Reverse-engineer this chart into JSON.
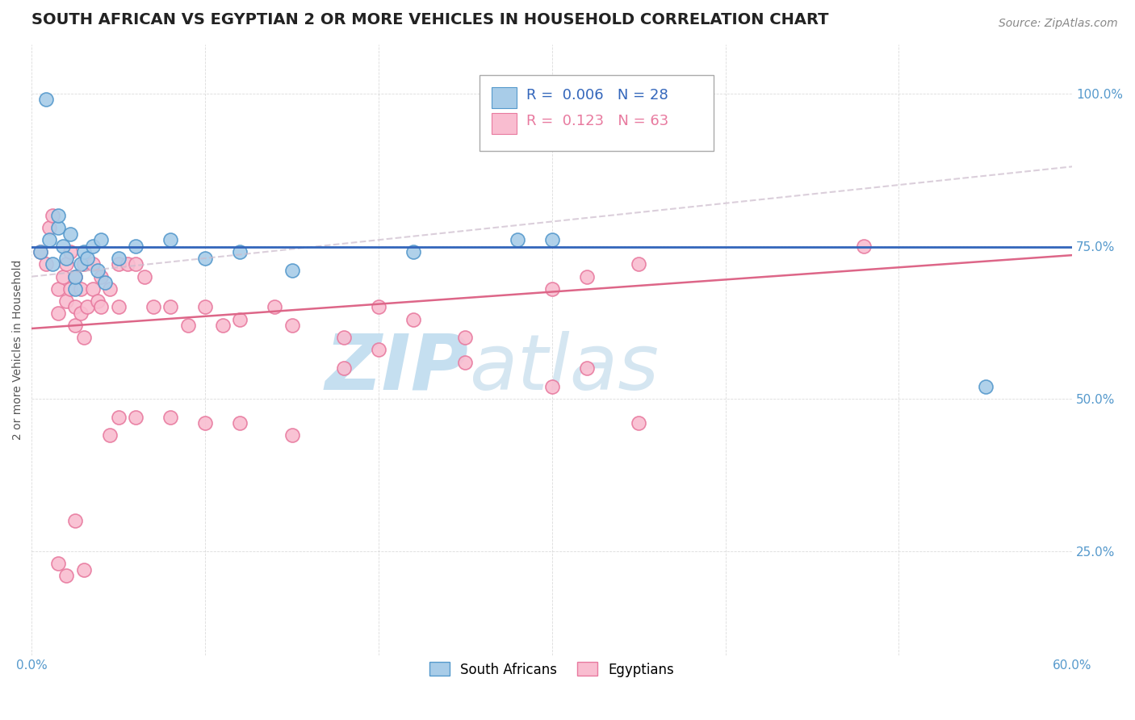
{
  "title": "SOUTH AFRICAN VS EGYPTIAN 2 OR MORE VEHICLES IN HOUSEHOLD CORRELATION CHART",
  "source_text": "Source: ZipAtlas.com",
  "ylabel": "2 or more Vehicles in Household",
  "xlim": [
    0.0,
    0.6
  ],
  "ylim": [
    0.08,
    1.08
  ],
  "x_ticks": [
    0.0,
    0.1,
    0.2,
    0.3,
    0.4,
    0.5,
    0.6
  ],
  "x_tick_labels": [
    "0.0%",
    "",
    "",
    "",
    "",
    "",
    "60.0%"
  ],
  "y_ticks": [
    0.25,
    0.5,
    0.75,
    1.0
  ],
  "y_tick_labels": [
    "25.0%",
    "50.0%",
    "75.0%",
    "100.0%"
  ],
  "blue_scatter_color": "#a8cce8",
  "blue_scatter_edge": "#5599cc",
  "pink_scatter_color": "#f9bdd0",
  "pink_scatter_edge": "#e87a9f",
  "blue_line_color": "#3366bb",
  "pink_line_color": "#dd6688",
  "pink_dash_color": "#ddaacc",
  "watermark_zip_color": "#c5dff0",
  "watermark_atlas_color": "#88b8d8",
  "legend_R_blue": "0.006",
  "legend_N_blue": "28",
  "legend_R_pink": "0.123",
  "legend_N_pink": "63",
  "legend_label_blue": "South Africans",
  "legend_label_pink": "Egyptians",
  "blue_scatter_x": [
    0.005,
    0.01,
    0.012,
    0.015,
    0.018,
    0.02,
    0.022,
    0.025,
    0.025,
    0.028,
    0.03,
    0.032,
    0.035,
    0.038,
    0.04,
    0.042,
    0.05,
    0.06,
    0.08,
    0.1,
    0.12,
    0.15,
    0.22,
    0.28,
    0.3,
    0.55,
    0.015,
    0.008
  ],
  "blue_scatter_y": [
    0.74,
    0.76,
    0.72,
    0.78,
    0.75,
    0.73,
    0.77,
    0.68,
    0.7,
    0.72,
    0.74,
    0.73,
    0.75,
    0.71,
    0.76,
    0.69,
    0.73,
    0.75,
    0.76,
    0.73,
    0.74,
    0.71,
    0.74,
    0.76,
    0.76,
    0.52,
    0.8,
    0.99
  ],
  "pink_scatter_x": [
    0.005,
    0.008,
    0.01,
    0.012,
    0.015,
    0.015,
    0.018,
    0.02,
    0.02,
    0.022,
    0.022,
    0.025,
    0.025,
    0.025,
    0.028,
    0.028,
    0.03,
    0.03,
    0.032,
    0.035,
    0.035,
    0.038,
    0.04,
    0.04,
    0.045,
    0.05,
    0.05,
    0.055,
    0.06,
    0.065,
    0.07,
    0.08,
    0.09,
    0.1,
    0.11,
    0.12,
    0.14,
    0.15,
    0.18,
    0.2,
    0.22,
    0.25,
    0.3,
    0.32,
    0.35,
    0.48,
    0.32,
    0.18,
    0.2,
    0.25,
    0.3,
    0.35,
    0.15,
    0.08,
    0.1,
    0.12,
    0.05,
    0.06,
    0.045,
    0.025,
    0.015,
    0.02,
    0.03
  ],
  "pink_scatter_y": [
    0.74,
    0.72,
    0.78,
    0.8,
    0.68,
    0.64,
    0.7,
    0.66,
    0.72,
    0.68,
    0.74,
    0.7,
    0.65,
    0.62,
    0.68,
    0.64,
    0.72,
    0.6,
    0.65,
    0.68,
    0.72,
    0.66,
    0.7,
    0.65,
    0.68,
    0.72,
    0.65,
    0.72,
    0.72,
    0.7,
    0.65,
    0.65,
    0.62,
    0.65,
    0.62,
    0.63,
    0.65,
    0.62,
    0.6,
    0.65,
    0.63,
    0.6,
    0.68,
    0.7,
    0.72,
    0.75,
    0.55,
    0.55,
    0.58,
    0.56,
    0.52,
    0.46,
    0.44,
    0.47,
    0.46,
    0.46,
    0.47,
    0.47,
    0.44,
    0.3,
    0.23,
    0.21,
    0.22
  ],
  "background_color": "#ffffff",
  "grid_color": "#cccccc",
  "title_fontsize": 14,
  "axis_label_fontsize": 10,
  "tick_fontsize": 11,
  "legend_fontsize": 13,
  "legend_color_blue": "#3366bb",
  "legend_color_pink": "#e87a9f"
}
